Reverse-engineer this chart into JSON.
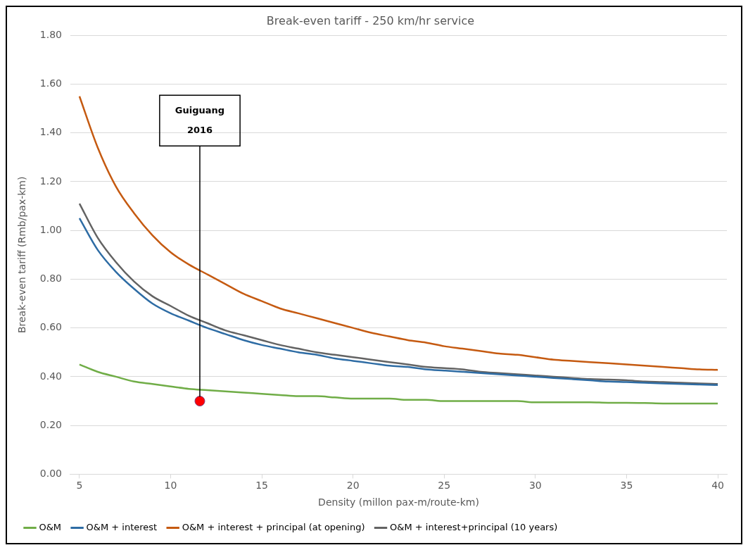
{
  "chart_data": {
    "type": "line",
    "title": "Break-even tariff - 250 km/hr service",
    "xlabel": "Density (millon pax-m/route-km)",
    "ylabel": "Break-even tariff (Rmb/pax-km)",
    "x": [
      5,
      6,
      7,
      8,
      9,
      10,
      11,
      12,
      13,
      14,
      15,
      16,
      17,
      18,
      19,
      20,
      21,
      22,
      23,
      24,
      25,
      26,
      27,
      28,
      29,
      30,
      31,
      32,
      33,
      34,
      35,
      36,
      37,
      38,
      39,
      40
    ],
    "series": [
      {
        "name": "O&M",
        "color": "#70ad47",
        "values": [
          0.45,
          0.42,
          0.4,
          0.38,
          0.37,
          0.36,
          0.35,
          0.345,
          0.34,
          0.335,
          0.33,
          0.325,
          0.32,
          0.32,
          0.315,
          0.31,
          0.31,
          0.31,
          0.305,
          0.305,
          0.3,
          0.3,
          0.3,
          0.3,
          0.3,
          0.295,
          0.295,
          0.295,
          0.295,
          0.293,
          0.293,
          0.292,
          0.29,
          0.29,
          0.29,
          0.29
        ]
      },
      {
        "name": "O&M + interest",
        "color": "#2e6ca4",
        "values": [
          1.05,
          0.92,
          0.83,
          0.76,
          0.7,
          0.66,
          0.63,
          0.6,
          0.575,
          0.55,
          0.53,
          0.515,
          0.5,
          0.49,
          0.475,
          0.465,
          0.455,
          0.445,
          0.44,
          0.43,
          0.425,
          0.42,
          0.415,
          0.41,
          0.405,
          0.4,
          0.395,
          0.39,
          0.385,
          0.38,
          0.378,
          0.375,
          0.372,
          0.37,
          0.368,
          0.366
        ]
      },
      {
        "name": "O&M + interest + principal (at opening)",
        "color": "#c55a11",
        "values": [
          1.55,
          1.34,
          1.18,
          1.07,
          0.98,
          0.91,
          0.86,
          0.82,
          0.78,
          0.74,
          0.71,
          0.68,
          0.66,
          0.64,
          0.62,
          0.6,
          0.58,
          0.565,
          0.55,
          0.54,
          0.525,
          0.515,
          0.505,
          0.495,
          0.49,
          0.48,
          0.47,
          0.465,
          0.46,
          0.455,
          0.45,
          0.445,
          0.44,
          0.435,
          0.43,
          0.428
        ]
      },
      {
        "name": "O&M + interest+principal (10 years)",
        "color": "#636363",
        "values": [
          1.11,
          0.97,
          0.87,
          0.79,
          0.73,
          0.69,
          0.65,
          0.62,
          0.59,
          0.57,
          0.55,
          0.53,
          0.515,
          0.5,
          0.49,
          0.48,
          0.47,
          0.46,
          0.45,
          0.44,
          0.435,
          0.43,
          0.42,
          0.415,
          0.41,
          0.405,
          0.4,
          0.395,
          0.39,
          0.388,
          0.385,
          0.38,
          0.378,
          0.375,
          0.372,
          0.37
        ]
      },
      {
        "type": "scatter",
        "color": "#ff0000",
        "x": [
          11.6
        ],
        "values": [
          0.3
        ],
        "marker": "circle"
      }
    ],
    "annotations": [
      {
        "text": "Guiguang\n2016",
        "x": 11.6,
        "y": 0.3
      }
    ],
    "xlim": [
      4.5,
      40.5
    ],
    "xticks": [
      5,
      10,
      15,
      20,
      25,
      30,
      35,
      40
    ],
    "ylim": [
      0,
      1.8
    ],
    "yticks": [
      {
        "value": 0,
        "label": "0.00"
      },
      {
        "value": 0.2,
        "label": "0.20"
      },
      {
        "value": 0.4,
        "label": "0.40"
      },
      {
        "value": 0.6,
        "label": "0.60"
      },
      {
        "value": 0.8,
        "label": "0.80"
      },
      {
        "value": 1,
        "label": "1.00"
      },
      {
        "value": 1.2,
        "label": "1.20"
      },
      {
        "value": 1.4,
        "label": "1.40"
      },
      {
        "value": 1.6,
        "label": "1.60"
      },
      {
        "value": 1.8,
        "label": "1.80"
      }
    ],
    "grid": "y",
    "legend": "bottom",
    "marker": "none",
    "line_style": "solid"
  }
}
